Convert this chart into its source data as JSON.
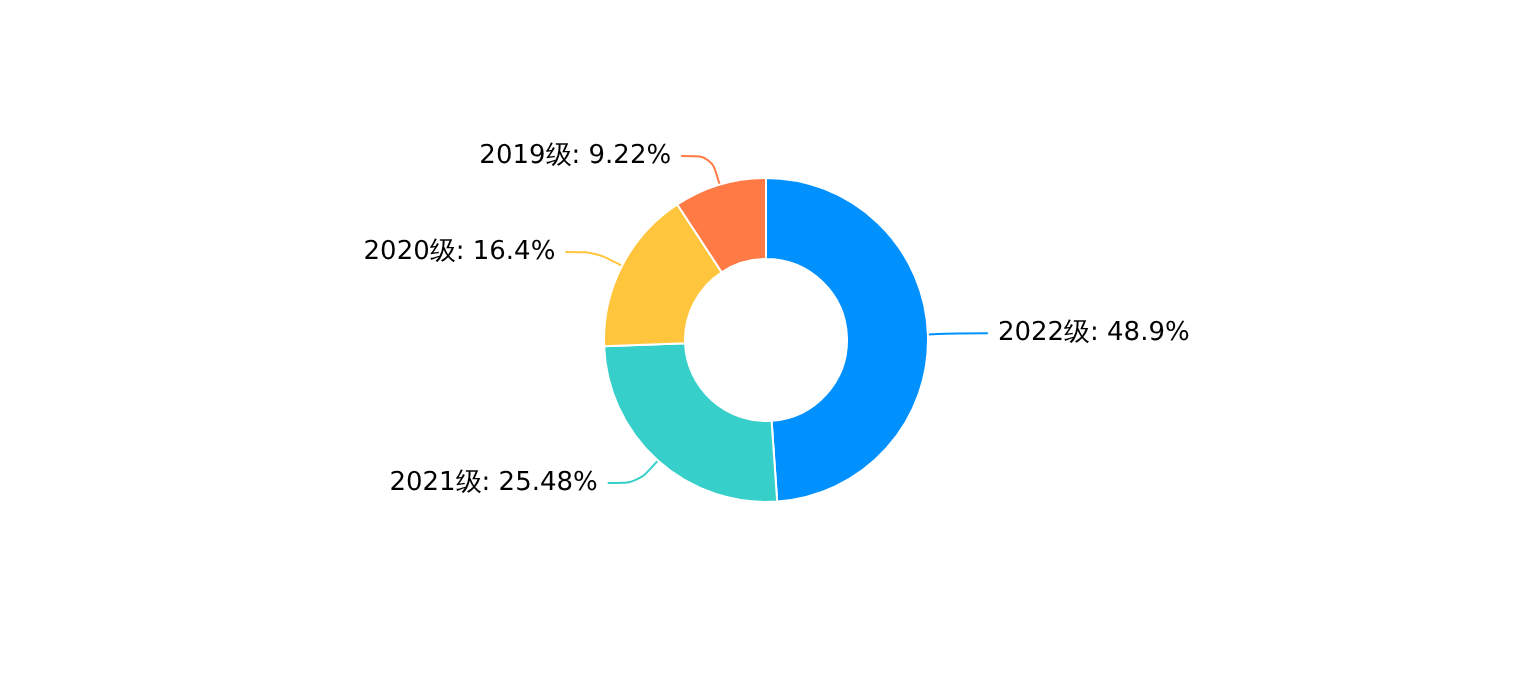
{
  "chart_data": {
    "type": "donut",
    "categories": [
      "2022级",
      "2021级",
      "2020级",
      "2019级"
    ],
    "values": [
      48.9,
      25.48,
      16.4,
      9.22
    ],
    "value_labels": [
      "48.9%",
      "25.48%",
      "16.4%",
      "9.22%"
    ],
    "colors": [
      "#0091ff",
      "#36cfc9",
      "#ffc53d",
      "#ff7a45"
    ],
    "data_labels": true,
    "legend": false
  }
}
